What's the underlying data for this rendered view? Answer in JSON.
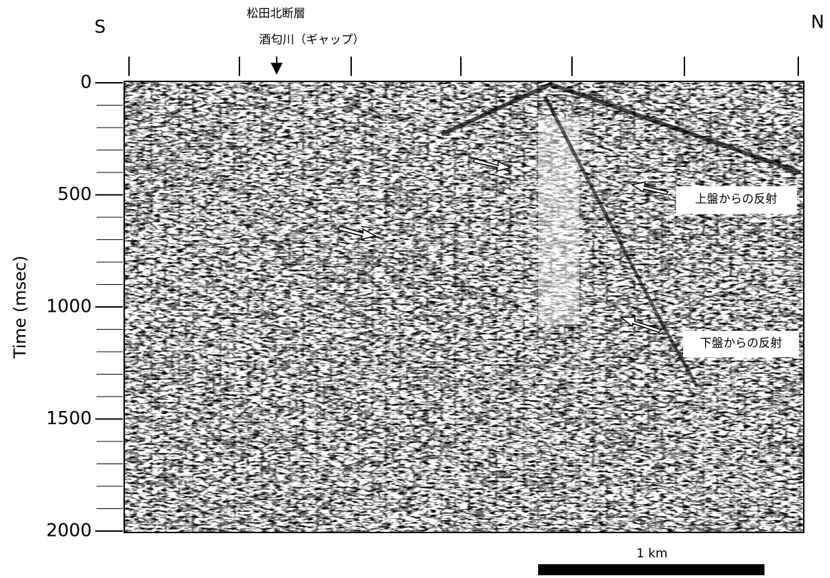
{
  "chart_data": {
    "type": "seismic-section",
    "ylabel": "Time (msec)",
    "ylim": [
      0,
      2000
    ],
    "yticks": [
      0,
      500,
      1000,
      1500,
      2000
    ],
    "left_label": "S",
    "right_label": "N",
    "annotations": [
      "松田北断層",
      "酒匂川（ギャップ）",
      "上盤からの反射",
      "下盤からの反射"
    ],
    "scale_label": "1 km"
  }
}
